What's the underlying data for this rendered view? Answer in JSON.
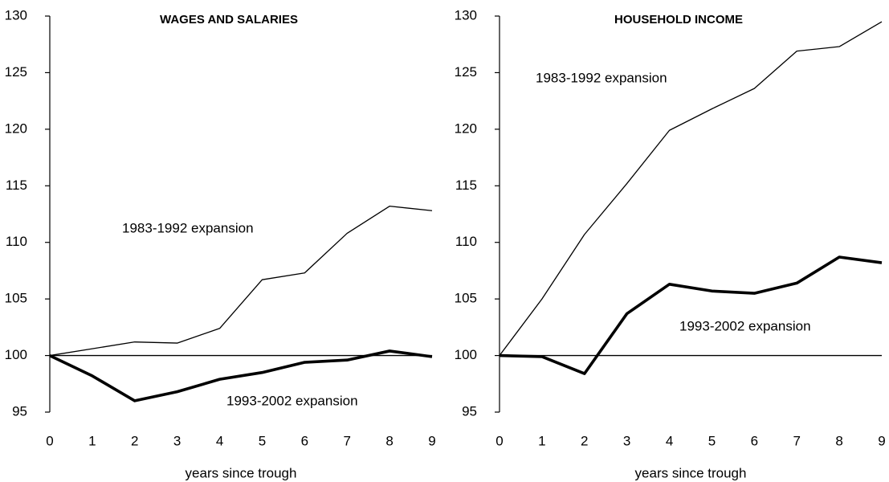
{
  "chart_data": [
    {
      "type": "line",
      "title": "WAGES AND SALARIES",
      "x_label": "years since trough",
      "x": [
        0,
        1,
        2,
        3,
        4,
        5,
        6,
        7,
        8,
        9
      ],
      "xlim": [
        0,
        9
      ],
      "xticks": [
        0,
        1,
        2,
        3,
        4,
        5,
        6,
        7,
        8,
        9
      ],
      "ylim": [
        95,
        130
      ],
      "yticks": [
        95,
        100,
        105,
        110,
        115,
        120,
        125,
        130
      ],
      "series": [
        {
          "name": "1983-1992 expansion",
          "color": "#000000",
          "values": [
            100,
            100.6,
            101.2,
            101.1,
            102.4,
            106.7,
            107.3,
            110.8,
            113.2,
            112.8
          ]
        },
        {
          "name": "1993-2002 expansion",
          "color": "#000000",
          "values": [
            100,
            98.2,
            96.0,
            96.8,
            97.9,
            98.5,
            99.4,
            99.6,
            100.4,
            99.9
          ]
        }
      ]
    },
    {
      "type": "line",
      "title": "HOUSEHOLD INCOME",
      "x_label": "years since trough",
      "x": [
        0,
        1,
        2,
        3,
        4,
        5,
        6,
        7,
        8,
        9
      ],
      "xlim": [
        0,
        9
      ],
      "xticks": [
        0,
        1,
        2,
        3,
        4,
        5,
        6,
        7,
        8,
        9
      ],
      "ylim": [
        95,
        130
      ],
      "yticks": [
        95,
        100,
        105,
        110,
        115,
        120,
        125,
        130
      ],
      "series": [
        {
          "name": "1983-1992 expansion",
          "color": "#000000",
          "values": [
            100,
            105.0,
            110.7,
            115.2,
            119.9,
            121.8,
            123.6,
            126.9,
            127.3,
            129.5
          ]
        },
        {
          "name": "1993-2002 expansion",
          "color": "#000000",
          "values": [
            100,
            99.9,
            98.4,
            103.7,
            106.3,
            105.7,
            105.5,
            106.4,
            108.7,
            108.2
          ]
        }
      ]
    }
  ]
}
